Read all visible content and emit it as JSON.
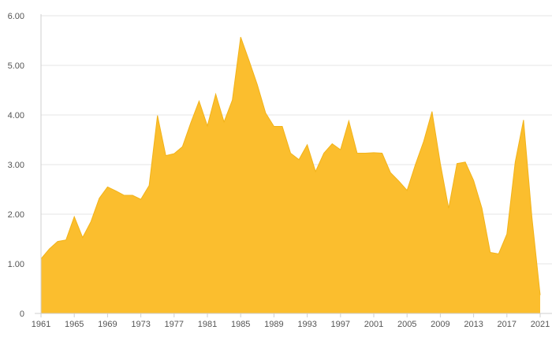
{
  "chart_data": {
    "type": "area",
    "title": "",
    "xlabel": "",
    "ylabel": "",
    "x": [
      1961,
      1962,
      1963,
      1964,
      1965,
      1966,
      1967,
      1968,
      1969,
      1970,
      1971,
      1972,
      1973,
      1974,
      1975,
      1976,
      1977,
      1978,
      1979,
      1980,
      1981,
      1982,
      1983,
      1984,
      1985,
      1986,
      1987,
      1988,
      1989,
      1990,
      1991,
      1992,
      1993,
      1994,
      1995,
      1996,
      1997,
      1998,
      1999,
      2000,
      2001,
      2002,
      2003,
      2004,
      2005,
      2006,
      2007,
      2008,
      2009,
      2010,
      2011,
      2012,
      2013,
      2014,
      2015,
      2016,
      2017,
      2018,
      2019,
      2020,
      2021
    ],
    "series": [
      {
        "values": [
          1.1,
          1.3,
          1.45,
          1.48,
          1.95,
          1.53,
          1.85,
          2.32,
          2.55,
          2.47,
          2.38,
          2.38,
          2.3,
          2.58,
          3.99,
          3.18,
          3.22,
          3.36,
          3.84,
          4.28,
          3.78,
          4.42,
          3.86,
          4.3,
          5.57,
          5.1,
          4.61,
          4.04,
          3.77,
          3.77,
          3.23,
          3.1,
          3.4,
          2.86,
          3.23,
          3.42,
          3.3,
          3.88,
          3.23,
          3.23,
          3.24,
          3.23,
          2.84,
          2.67,
          2.48,
          3.0,
          3.47,
          4.07,
          3.02,
          2.12,
          3.02,
          3.05,
          2.68,
          2.12,
          1.23,
          1.2,
          1.6,
          3.05,
          3.9,
          1.95,
          0.37
        ]
      }
    ],
    "ylim": [
      0,
      6
    ],
    "xlim": [
      1961,
      2021
    ],
    "y_ticks": [
      {
        "value": 0,
        "label": "0"
      },
      {
        "value": 1,
        "label": "1.00"
      },
      {
        "value": 2,
        "label": "2.00"
      },
      {
        "value": 3,
        "label": "3.00"
      },
      {
        "value": 4,
        "label": "4.00"
      },
      {
        "value": 5,
        "label": "5.00"
      },
      {
        "value": 6,
        "label": "6.00"
      }
    ],
    "x_ticks": [
      {
        "value": 1961,
        "label": "1961"
      },
      {
        "value": 1965,
        "label": "1965"
      },
      {
        "value": 1969,
        "label": "1969"
      },
      {
        "value": 1973,
        "label": "1973"
      },
      {
        "value": 1977,
        "label": "1977"
      },
      {
        "value": 1981,
        "label": "1981"
      },
      {
        "value": 1985,
        "label": "1985"
      },
      {
        "value": 1989,
        "label": "1989"
      },
      {
        "value": 1993,
        "label": "1993"
      },
      {
        "value": 1997,
        "label": "1997"
      },
      {
        "value": 2001,
        "label": "2001"
      },
      {
        "value": 2005,
        "label": "2005"
      },
      {
        "value": 2009,
        "label": "2009"
      },
      {
        "value": 2013,
        "label": "2013"
      },
      {
        "value": 2017,
        "label": "2017"
      },
      {
        "value": 2021,
        "label": "2021"
      }
    ],
    "grid": true,
    "legend": "none",
    "colors": {
      "area_fill": "#fbbe2e",
      "area_stroke": "#f2b31a",
      "grid": "#e6e6e6",
      "axis": "#cfcfcf",
      "tick_text": "#555555"
    }
  }
}
